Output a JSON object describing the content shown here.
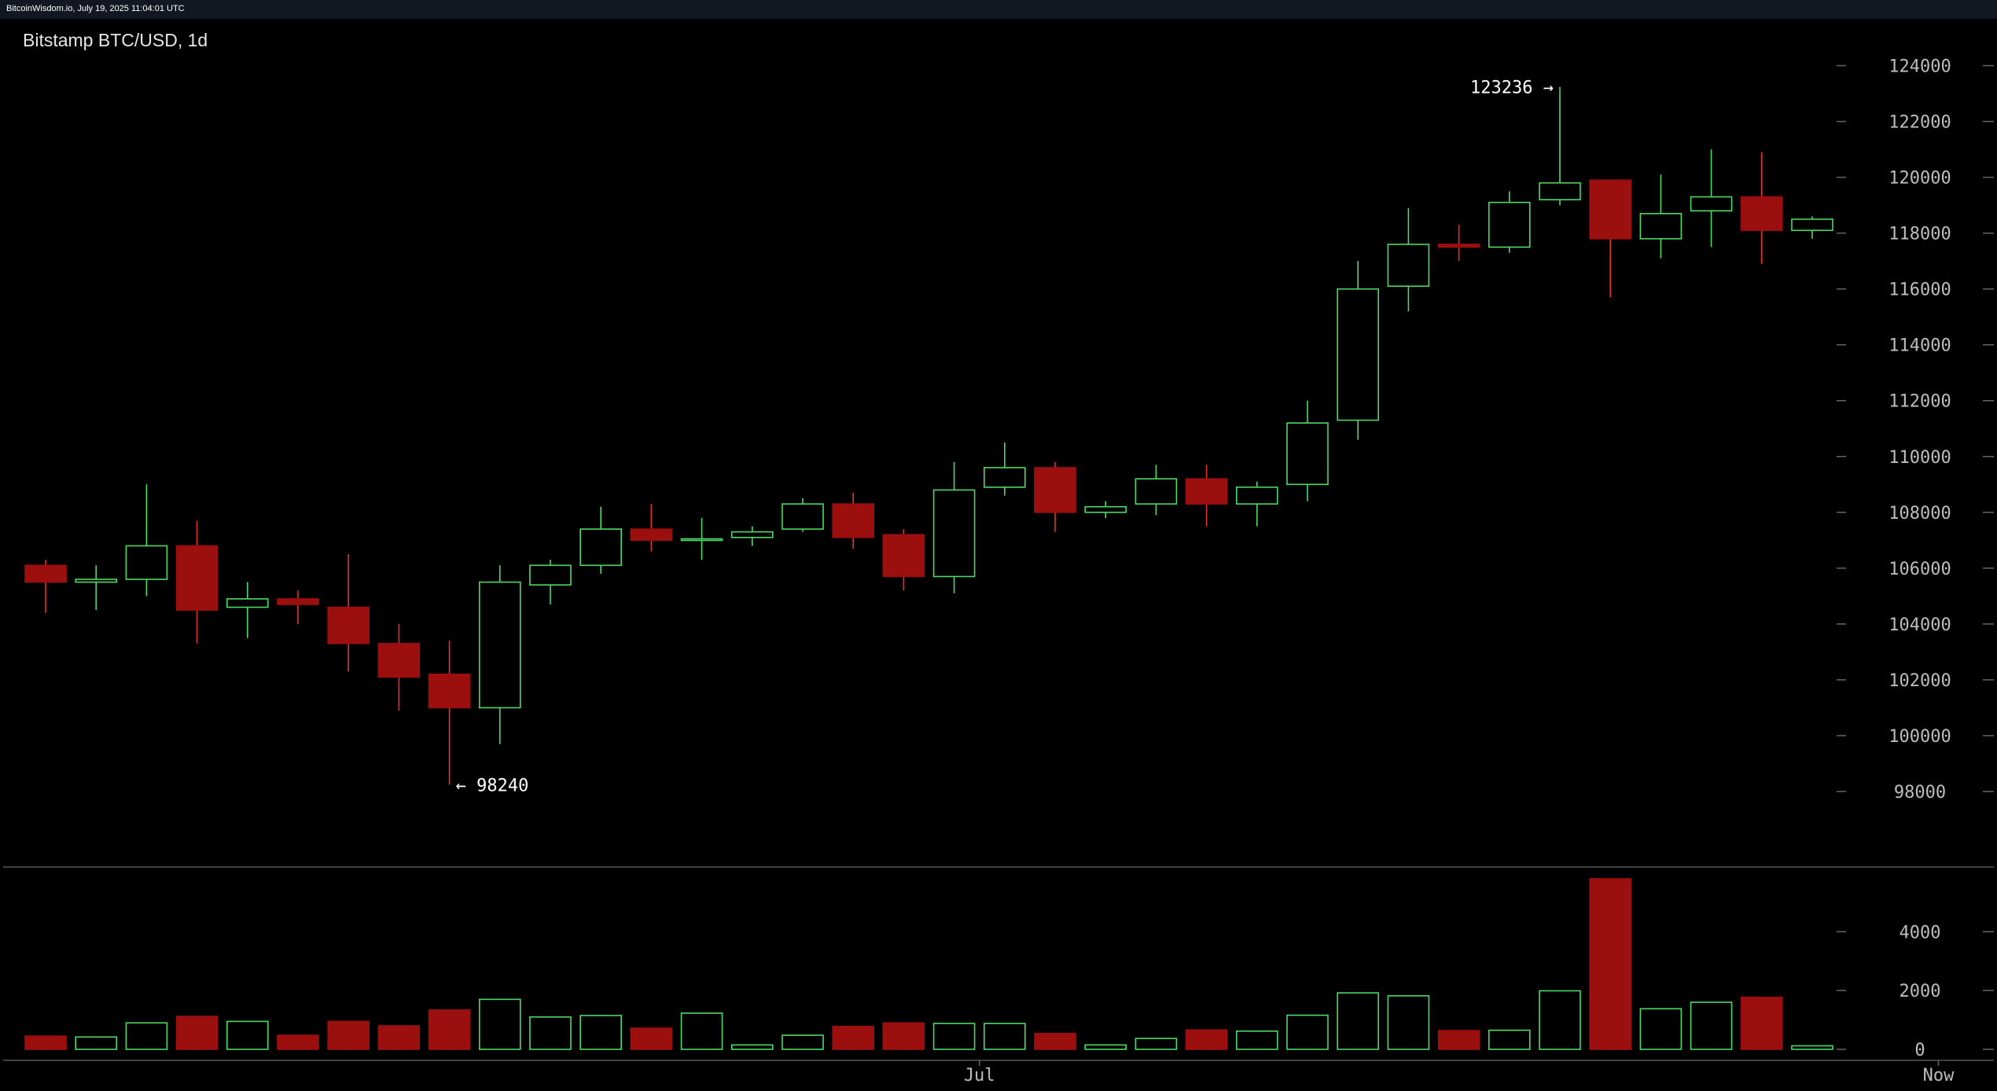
{
  "header": {
    "source": "BitcoinWisdom.io, July 19, 2025 11:04:01 UTC"
  },
  "title": "Bitstamp BTC/USD, 1d",
  "colors": {
    "up": "#4cd964",
    "down": "#9b0f0f",
    "down_edge": "#e0342c",
    "background": "#000000",
    "axis": "#bdbdbd",
    "separator": "#555555"
  },
  "chart_data": {
    "type": "candlestick",
    "price_ticks": [
      98000,
      100000,
      102000,
      104000,
      106000,
      108000,
      110000,
      112000,
      114000,
      116000,
      118000,
      120000,
      122000,
      124000
    ],
    "price_range": [
      96000,
      125000
    ],
    "volume_ticks": [
      0,
      2000,
      4000
    ],
    "volume_range": [
      0,
      6200
    ],
    "x_labels": [
      {
        "label": "Jul",
        "index": 18.5
      },
      {
        "label": "Now",
        "index": 37.5
      }
    ],
    "annotations": [
      {
        "text": "123236 →",
        "index": 30,
        "value": 123236,
        "side": "left"
      },
      {
        "text": "← 98240",
        "index": 8,
        "value": 98240,
        "side": "right"
      }
    ],
    "candles": [
      {
        "o": 106100,
        "h": 106300,
        "l": 104400,
        "c": 105500,
        "v": 450
      },
      {
        "o": 105500,
        "h": 106100,
        "l": 104500,
        "c": 105600,
        "v": 420
      },
      {
        "o": 105600,
        "h": 109000,
        "l": 105000,
        "c": 106800,
        "v": 900
      },
      {
        "o": 106800,
        "h": 107700,
        "l": 103300,
        "c": 104500,
        "v": 1120
      },
      {
        "o": 104600,
        "h": 105500,
        "l": 103500,
        "c": 104900,
        "v": 950
      },
      {
        "o": 104900,
        "h": 105200,
        "l": 104000,
        "c": 104700,
        "v": 480
      },
      {
        "o": 104600,
        "h": 106500,
        "l": 102300,
        "c": 103300,
        "v": 950
      },
      {
        "o": 103300,
        "h": 104000,
        "l": 100900,
        "c": 102100,
        "v": 800
      },
      {
        "o": 102200,
        "h": 103400,
        "l": 98240,
        "c": 101000,
        "v": 1340
      },
      {
        "o": 101000,
        "h": 106100,
        "l": 99700,
        "c": 105500,
        "v": 1700
      },
      {
        "o": 105400,
        "h": 106300,
        "l": 104700,
        "c": 106100,
        "v": 1100
      },
      {
        "o": 106100,
        "h": 108200,
        "l": 105800,
        "c": 107400,
        "v": 1150
      },
      {
        "o": 107400,
        "h": 108300,
        "l": 106600,
        "c": 107000,
        "v": 720
      },
      {
        "o": 107000,
        "h": 107800,
        "l": 106300,
        "c": 107050,
        "v": 1230
      },
      {
        "o": 107100,
        "h": 107500,
        "l": 106800,
        "c": 107300,
        "v": 150
      },
      {
        "o": 107400,
        "h": 108500,
        "l": 107300,
        "c": 108300,
        "v": 480
      },
      {
        "o": 108300,
        "h": 108700,
        "l": 106700,
        "c": 107100,
        "v": 780
      },
      {
        "o": 107200,
        "h": 107400,
        "l": 105200,
        "c": 105700,
        "v": 900
      },
      {
        "o": 105700,
        "h": 109800,
        "l": 105100,
        "c": 108800,
        "v": 880
      },
      {
        "o": 108900,
        "h": 110500,
        "l": 108600,
        "c": 109600,
        "v": 880
      },
      {
        "o": 109600,
        "h": 109800,
        "l": 107300,
        "c": 108000,
        "v": 540
      },
      {
        "o": 108000,
        "h": 108400,
        "l": 107800,
        "c": 108200,
        "v": 150
      },
      {
        "o": 108300,
        "h": 109700,
        "l": 107900,
        "c": 109200,
        "v": 370
      },
      {
        "o": 109200,
        "h": 109700,
        "l": 107500,
        "c": 108300,
        "v": 660
      },
      {
        "o": 108300,
        "h": 109100,
        "l": 107500,
        "c": 108900,
        "v": 620
      },
      {
        "o": 109000,
        "h": 112000,
        "l": 108400,
        "c": 111200,
        "v": 1160
      },
      {
        "o": 111300,
        "h": 117000,
        "l": 110600,
        "c": 116000,
        "v": 1920
      },
      {
        "o": 116100,
        "h": 118900,
        "l": 115200,
        "c": 117600,
        "v": 1820
      },
      {
        "o": 117600,
        "h": 118300,
        "l": 117000,
        "c": 117500,
        "v": 640
      },
      {
        "o": 117500,
        "h": 119500,
        "l": 117300,
        "c": 119100,
        "v": 650
      },
      {
        "o": 119200,
        "h": 123236,
        "l": 119000,
        "c": 119800,
        "v": 1990
      },
      {
        "o": 119900,
        "h": 119900,
        "l": 115700,
        "c": 117800,
        "v": 5800
      },
      {
        "o": 117800,
        "h": 120100,
        "l": 117100,
        "c": 118700,
        "v": 1380
      },
      {
        "o": 118800,
        "h": 121000,
        "l": 117500,
        "c": 119300,
        "v": 1600
      },
      {
        "o": 119300,
        "h": 120900,
        "l": 116900,
        "c": 118100,
        "v": 1770
      },
      {
        "o": 118100,
        "h": 118600,
        "l": 117800,
        "c": 118500,
        "v": 120
      }
    ]
  }
}
